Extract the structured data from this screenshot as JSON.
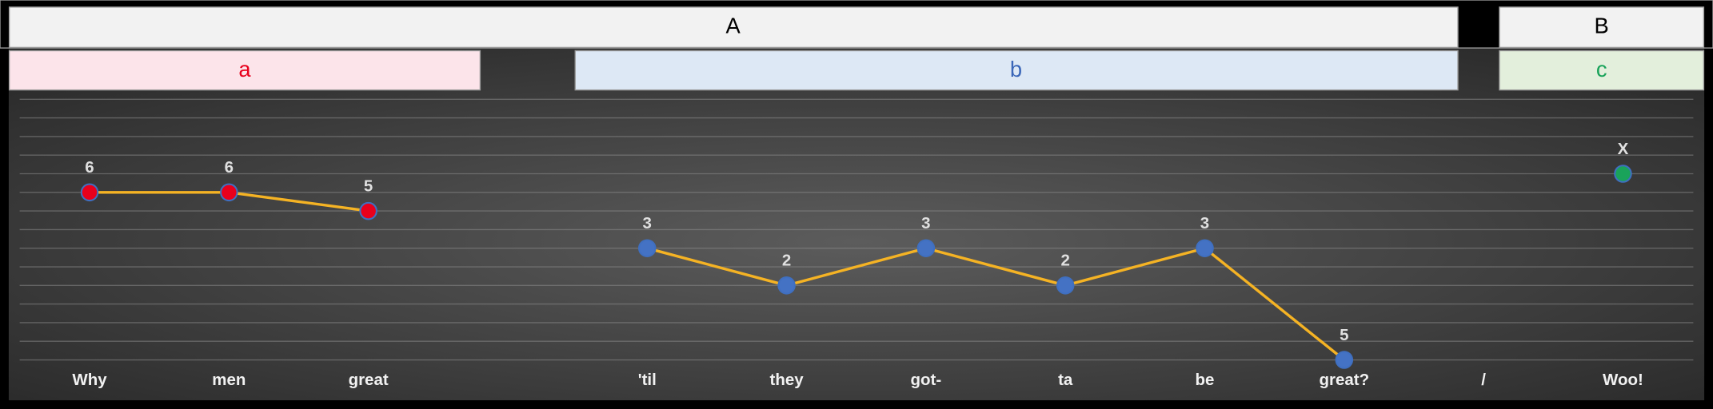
{
  "chart_data": {
    "type": "line",
    "headers": {
      "top": [
        "A",
        "B"
      ],
      "sub": [
        "a",
        "b",
        "c"
      ]
    },
    "categories": [
      "Why",
      "men",
      "great",
      null,
      "'til",
      "they",
      "got-",
      "ta",
      "be",
      "great?",
      "/",
      "Woo!"
    ],
    "line_color": "#f5b324",
    "series": [
      {
        "name": "a",
        "color": "#e8001c",
        "values": [
          9,
          9,
          8,
          null,
          null,
          null,
          null,
          null,
          null,
          null,
          null,
          null
        ],
        "point_labels": [
          "6",
          "6",
          "5",
          null,
          null,
          null,
          null,
          null,
          null,
          null,
          null,
          null
        ]
      },
      {
        "name": "b",
        "color": "#4472c4",
        "values": [
          null,
          null,
          null,
          null,
          6,
          4,
          6,
          4,
          6,
          0,
          null,
          null
        ],
        "point_labels": [
          null,
          null,
          null,
          null,
          "3",
          "2",
          "3",
          "2",
          "3",
          "5",
          null,
          null
        ]
      },
      {
        "name": "c",
        "color": "#1aa35a",
        "values": [
          null,
          null,
          null,
          null,
          null,
          null,
          null,
          null,
          null,
          null,
          null,
          10
        ],
        "point_labels": [
          null,
          null,
          null,
          null,
          null,
          null,
          null,
          null,
          null,
          null,
          null,
          "X"
        ]
      }
    ],
    "ylim": [
      -0.5,
      14.5
    ],
    "yticks": [
      0,
      1,
      2,
      3,
      4,
      5,
      6,
      7,
      8,
      9,
      10,
      11,
      12,
      13,
      14
    ],
    "grid": true
  }
}
